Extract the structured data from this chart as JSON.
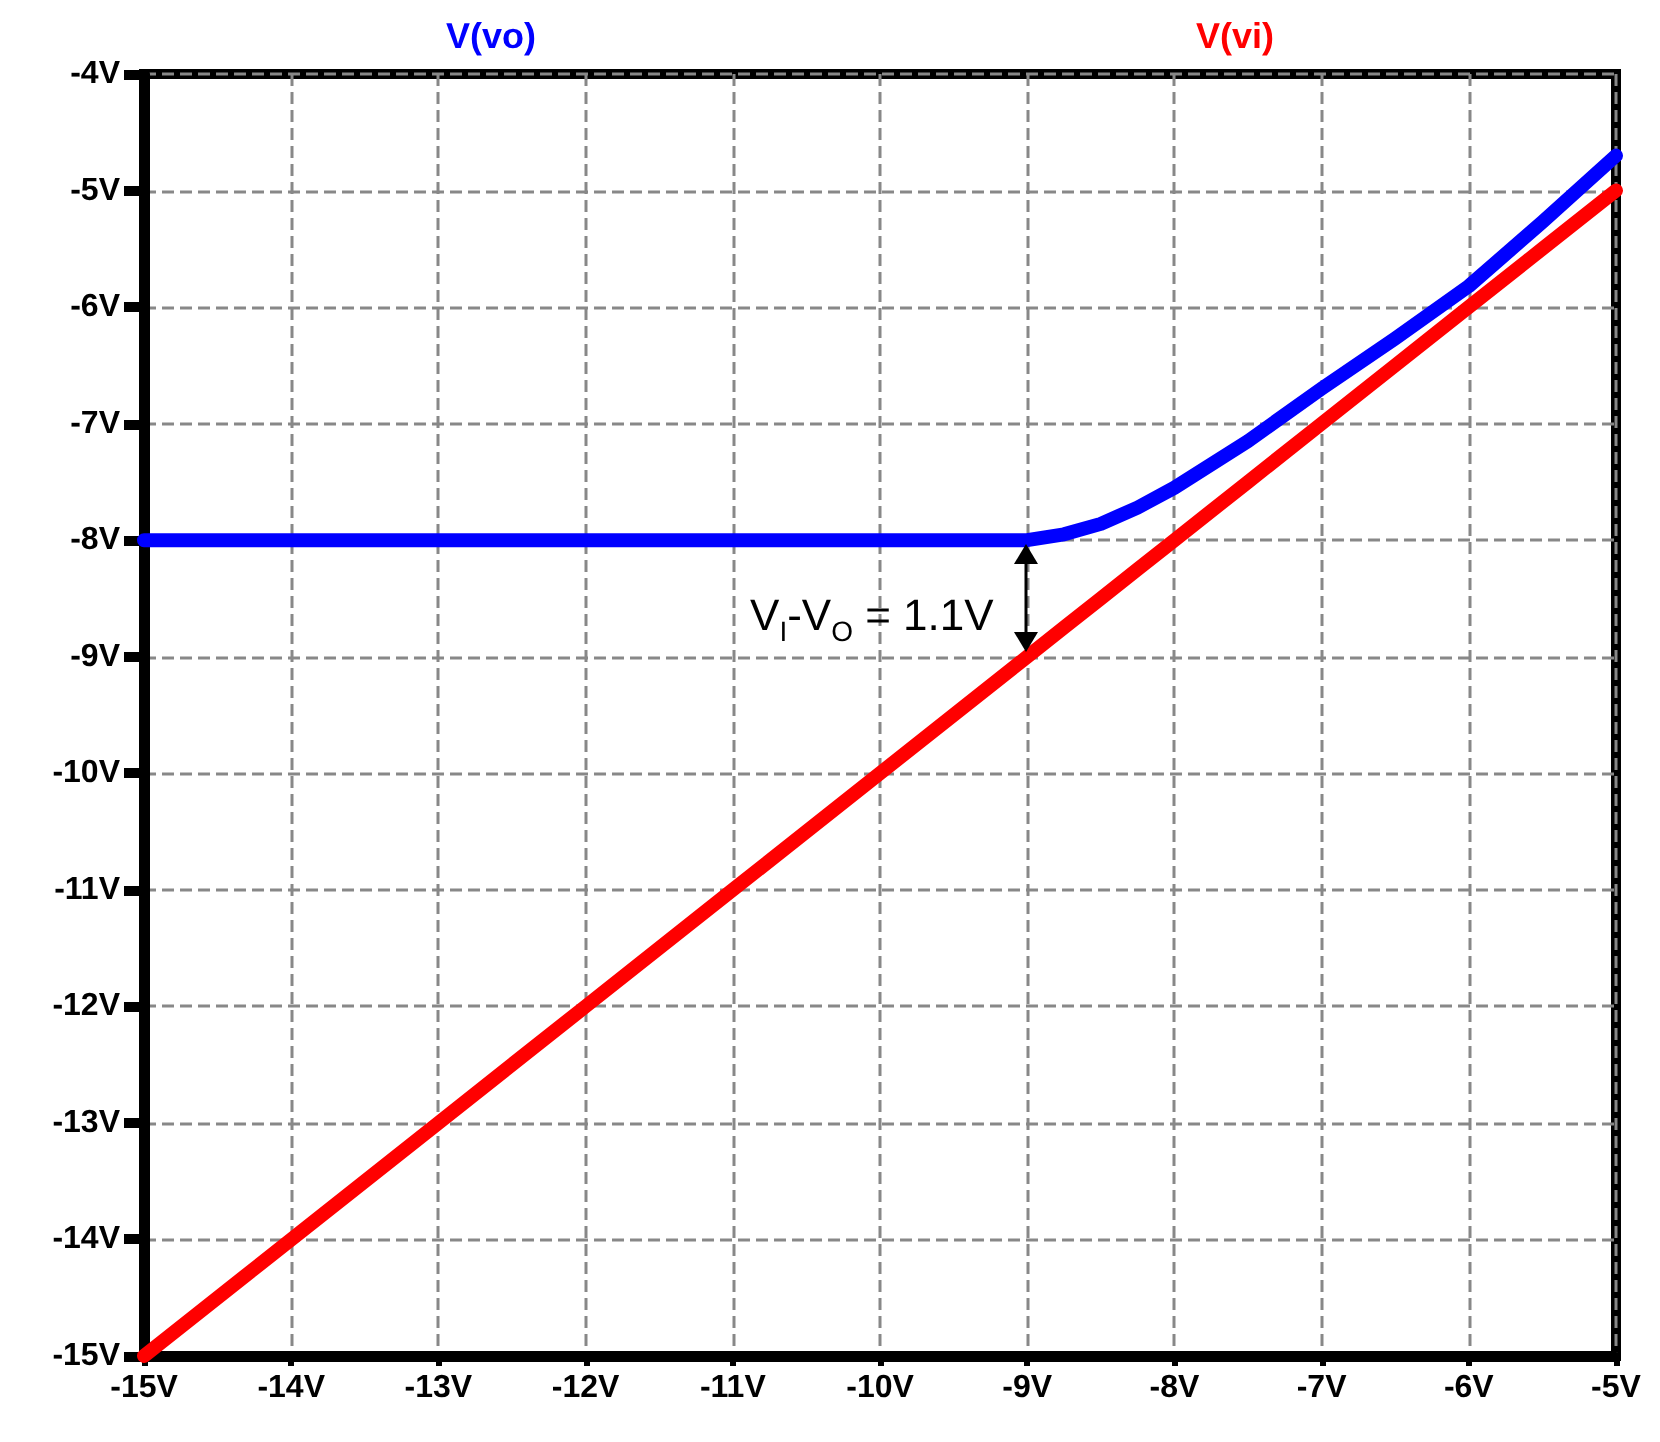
{
  "chart_data": {
    "type": "line",
    "x": [
      -15,
      -14,
      -13,
      -12,
      -11,
      -10,
      -9,
      -8.75,
      -8.5,
      -8.25,
      -8,
      -7.5,
      -7,
      -6.5,
      -6,
      -5.5,
      -5
    ],
    "series": [
      {
        "name": "V(vo)",
        "color": "#0000ff",
        "values": [
          -8,
          -8,
          -8,
          -8,
          -8,
          -8,
          -8,
          -7.95,
          -7.86,
          -7.72,
          -7.55,
          -7.15,
          -6.7,
          -6.27,
          -5.82,
          -5.27,
          -4.7
        ]
      },
      {
        "name": "V(vi)",
        "color": "#ff0000",
        "values": [
          -15,
          -14,
          -13,
          -12,
          -11,
          -10,
          -9,
          -8.75,
          -8.5,
          -8.25,
          -8,
          -7.5,
          -7,
          -6.5,
          -6,
          -5.5,
          -5
        ]
      }
    ],
    "xlim": [
      -15,
      -5
    ],
    "xticks": [
      {
        "value": -15,
        "label": "-15V"
      },
      {
        "value": -14,
        "label": "-14V"
      },
      {
        "value": -13,
        "label": "-13V"
      },
      {
        "value": -12,
        "label": "-12V"
      },
      {
        "value": -11,
        "label": "-11V"
      },
      {
        "value": -10,
        "label": "-10V"
      },
      {
        "value": -9,
        "label": "-9V"
      },
      {
        "value": -8,
        "label": "-8V"
      },
      {
        "value": -7,
        "label": "-7V"
      },
      {
        "value": -6,
        "label": "-6V"
      },
      {
        "value": -5,
        "label": "-5V"
      }
    ],
    "ylim": [
      -15,
      -4
    ],
    "yticks": [
      {
        "value": -15,
        "label": "-15V"
      },
      {
        "value": -14,
        "label": "-14V"
      },
      {
        "value": -13,
        "label": "-13V"
      },
      {
        "value": -12,
        "label": "-12V"
      },
      {
        "value": -11,
        "label": "-11V"
      },
      {
        "value": -10,
        "label": "-10V"
      },
      {
        "value": -9,
        "label": "-9V"
      },
      {
        "value": -8,
        "label": "-8V"
      },
      {
        "value": -7,
        "label": "-7V"
      },
      {
        "value": -6,
        "label": "-6V"
      },
      {
        "value": -5,
        "label": "-5V"
      },
      {
        "value": -4,
        "label": "-4V"
      }
    ],
    "annotations": [
      "V$_{I}$-V$_{O}$ = 1.1V"
    ],
    "grid": true,
    "legend": "top",
    "line_style": "solid"
  }
}
